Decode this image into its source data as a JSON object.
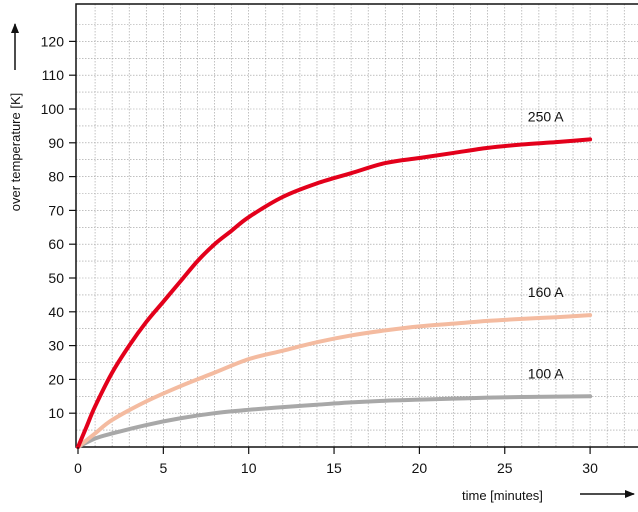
{
  "chart_data": {
    "type": "line",
    "xlabel": "time [minutes]",
    "ylabel": "over temperature [K]",
    "xlim": [
      0,
      33
    ],
    "ylim": [
      0,
      125
    ],
    "x_ticks": [
      0,
      5,
      10,
      15,
      20,
      25,
      30
    ],
    "y_ticks": [
      10,
      20,
      30,
      40,
      50,
      60,
      70,
      80,
      90,
      100,
      110,
      120
    ],
    "x_tick_labels": [
      "0",
      "5",
      "10",
      "15",
      "20",
      "25",
      "30"
    ],
    "y_tick_labels": [
      "10",
      "20",
      "30",
      "40",
      "50",
      "60",
      "70",
      "80",
      "90",
      "100",
      "110",
      "120"
    ],
    "grid": true,
    "grid_step": {
      "x": 1,
      "y": 5
    },
    "series": [
      {
        "name": "250 A",
        "color": "#e3001b",
        "x": [
          0,
          0.5,
          1,
          2,
          3,
          4,
          5,
          6,
          7,
          8,
          9,
          10,
          12,
          14,
          16,
          18,
          20,
          22,
          24,
          26,
          28,
          30
        ],
        "y": [
          0,
          6,
          12,
          22,
          30,
          37,
          43,
          49,
          55,
          60,
          64,
          68,
          74,
          78,
          81,
          84,
          85.5,
          87,
          88.5,
          89.5,
          90.2,
          91
        ]
      },
      {
        "name": "160 A",
        "color": "#f4bba0",
        "x": [
          0,
          1,
          2,
          4,
          6,
          8,
          10,
          12,
          14,
          16,
          18,
          20,
          22,
          24,
          26,
          28,
          30
        ],
        "y": [
          0,
          4,
          8,
          13.5,
          18,
          22,
          26,
          28.5,
          31,
          33,
          34.5,
          35.7,
          36.5,
          37.3,
          37.9,
          38.4,
          39
        ]
      },
      {
        "name": "100 A",
        "color": "#a8a8a8",
        "x": [
          0,
          1,
          2,
          4,
          6,
          8,
          10,
          12,
          14,
          16,
          18,
          20,
          22,
          24,
          26,
          28,
          30
        ],
        "y": [
          0,
          2.5,
          4,
          6.5,
          8.5,
          10,
          11,
          11.8,
          12.5,
          13.2,
          13.7,
          14,
          14.3,
          14.6,
          14.8,
          14.9,
          15
        ]
      }
    ]
  }
}
